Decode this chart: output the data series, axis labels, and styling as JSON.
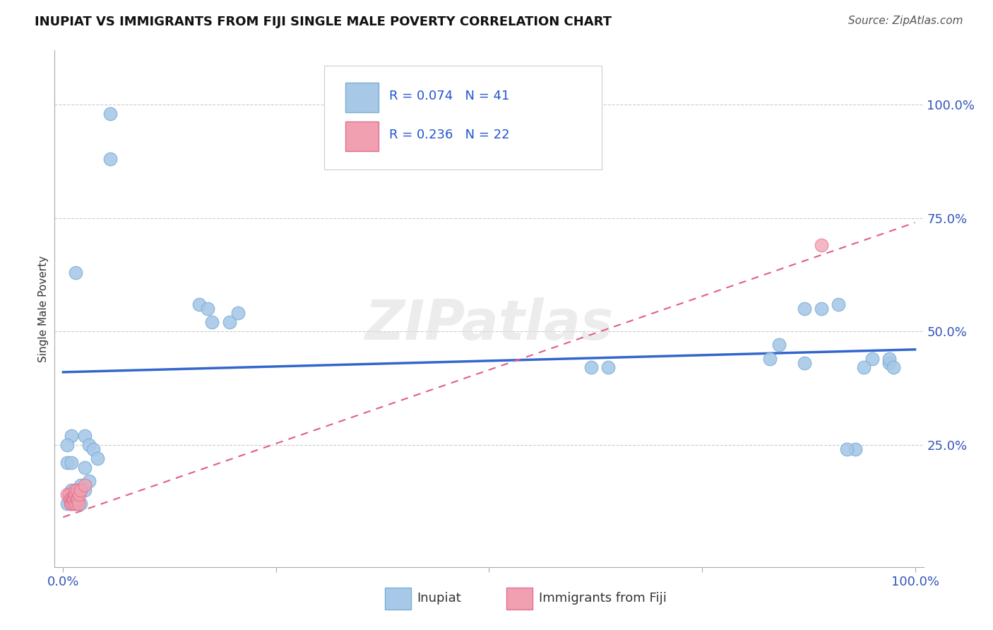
{
  "title": "INUPIAT VS IMMIGRANTS FROM FIJI SINGLE MALE POVERTY CORRELATION CHART",
  "source": "Source: ZipAtlas.com",
  "ylabel": "Single Male Poverty",
  "xlim": [
    -0.01,
    1.01
  ],
  "ylim": [
    -0.02,
    1.12
  ],
  "xticks": [
    0.0,
    0.25,
    0.5,
    0.75,
    1.0
  ],
  "xticklabels": [
    "0.0%",
    "",
    "",
    "",
    "100.0%"
  ],
  "ytick_positions": [
    0.25,
    0.5,
    0.75,
    1.0
  ],
  "ytick_labels": [
    "25.0%",
    "50.0%",
    "75.0%",
    "100.0%"
  ],
  "legend1_r": "0.074",
  "legend1_n": "41",
  "legend2_r": "0.236",
  "legend2_n": "22",
  "legend_label1": "Inupiat",
  "legend_label2": "Immigrants from Fiji",
  "blue_scatter_color": "#a8c8e8",
  "blue_scatter_edge": "#7aaed4",
  "pink_scatter_color": "#f0a0b0",
  "pink_scatter_edge": "#e07090",
  "line_blue_color": "#3366cc",
  "line_pink_color": "#e06080",
  "watermark": "ZIPatlas",
  "inupiat_x": [
    0.055,
    0.055,
    0.015,
    0.16,
    0.17,
    0.175,
    0.195,
    0.205,
    0.62,
    0.64,
    0.89,
    0.87,
    0.84,
    0.83,
    0.87,
    0.91,
    0.97,
    0.97,
    0.95,
    0.94,
    0.93,
    0.92,
    0.975,
    0.025,
    0.03,
    0.035,
    0.04,
    0.01,
    0.005,
    0.01,
    0.015,
    0.025,
    0.01,
    0.005,
    0.015,
    0.02,
    0.005,
    0.01,
    0.02,
    0.025,
    0.03
  ],
  "inupiat_y": [
    0.98,
    0.88,
    0.63,
    0.56,
    0.55,
    0.52,
    0.52,
    0.54,
    0.42,
    0.42,
    0.55,
    0.55,
    0.47,
    0.44,
    0.43,
    0.56,
    0.43,
    0.44,
    0.44,
    0.42,
    0.24,
    0.24,
    0.42,
    0.27,
    0.25,
    0.24,
    0.22,
    0.27,
    0.21,
    0.21,
    0.14,
    0.15,
    0.13,
    0.12,
    0.12,
    0.12,
    0.25,
    0.15,
    0.16,
    0.2,
    0.17
  ],
  "fiji_x": [
    0.005,
    0.007,
    0.008,
    0.009,
    0.01,
    0.01,
    0.011,
    0.012,
    0.012,
    0.013,
    0.013,
    0.014,
    0.015,
    0.015,
    0.016,
    0.016,
    0.017,
    0.018,
    0.019,
    0.02,
    0.025,
    0.89
  ],
  "fiji_y": [
    0.14,
    0.14,
    0.13,
    0.12,
    0.13,
    0.12,
    0.13,
    0.13,
    0.12,
    0.14,
    0.13,
    0.15,
    0.14,
    0.12,
    0.15,
    0.13,
    0.13,
    0.12,
    0.14,
    0.15,
    0.16,
    0.69
  ],
  "blue_line_x": [
    0.0,
    1.0
  ],
  "blue_line_y": [
    0.41,
    0.46
  ],
  "pink_line_x": [
    0.0,
    1.0
  ],
  "pink_line_y": [
    0.09,
    0.74
  ]
}
